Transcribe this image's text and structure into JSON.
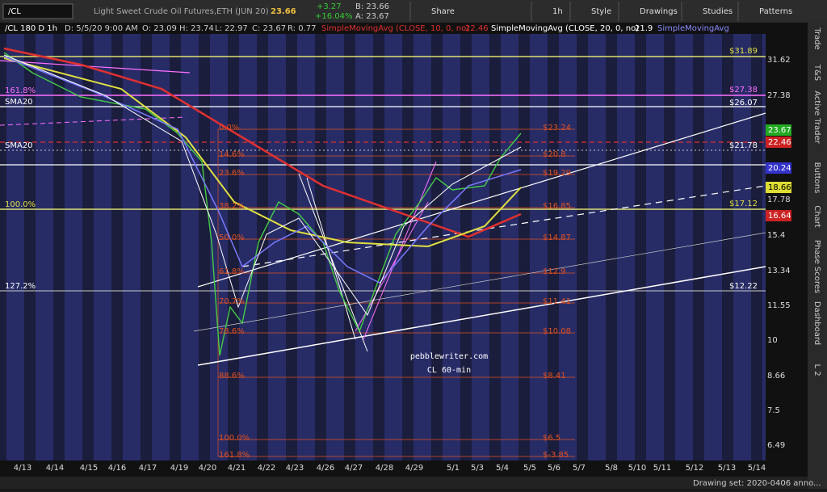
{
  "toolbar": {
    "symbol": "/CL",
    "description": "Light Sweet Crude Oil Futures,ETH (JUN 20)",
    "last": "23.66",
    "change": "+3.27",
    "change_pct": "+16.04%",
    "bid": "B: 23.66",
    "ask": "A: 23.67",
    "buttons": [
      "Share",
      "1h",
      "Style",
      "Drawings",
      "Studies",
      "Patterns"
    ]
  },
  "info_bar": {
    "symbol": "/CL 180 D 1h",
    "date": "D: 5/5/20 9:00 AM",
    "open": "O: 23.09",
    "high": "H: 23.74",
    "low": "L: 22.97",
    "close": "C: 23.67",
    "range": "R: 0.77",
    "study1": "SimpleMovingAvg (CLOSE, 10, 0, no)",
    "study1_value": "22.46",
    "study2": "SimpleMovingAvg (CLOSE, 20, 0, no)",
    "study2_value": "21.9",
    "study3": "SimpleMovingAvg"
  },
  "price_axis": [
    "31.62",
    "27.38",
    "17.78",
    "15.4",
    "13.34",
    "11.55",
    "10",
    "8.66",
    "7.5",
    "6.49"
  ],
  "price_badges": [
    "23.67",
    "22.46",
    "20.24",
    "18.66",
    "16.64"
  ],
  "dates": [
    "4/13",
    "4/14",
    "4/15",
    "4/16",
    "4/17",
    "4/19",
    "4/20",
    "4/21",
    "4/22",
    "4/23",
    "4/26",
    "4/27",
    "4/28",
    "4/29",
    "5/1",
    "5/3",
    "5/4",
    "5/5",
    "5/6",
    "5/7",
    "5/8",
    "5/10",
    "5/11",
    "5/12",
    "5/13",
    "5/14"
  ],
  "fib_levels": [
    {
      "pct": "0.0%",
      "price": "$23.24"
    },
    {
      "pct": "14.6%",
      "price": "$20.8"
    },
    {
      "pct": "23.6%",
      "price": "$19.29"
    },
    {
      "pct": "38.2%",
      "price": "$16.85"
    },
    {
      "pct": "50.0%",
      "price": "$14.87"
    },
    {
      "pct": "61.8%",
      "price": "$12.9"
    },
    {
      "pct": "70.7%",
      "price": "$11.41"
    },
    {
      "pct": "78.6%",
      "price": "$10.08"
    },
    {
      "pct": "88.6%",
      "price": "$8.41"
    },
    {
      "pct": "100.0%",
      "price": "$6.5"
    },
    {
      "pct": "161.8%",
      "price": "$-3.85"
    }
  ],
  "annotations": {
    "left": [
      "161.8%",
      "SMA20",
      "SMA20",
      "100.0%",
      "127.2%"
    ],
    "right": [
      "$31.89",
      "$27.38",
      "$26.07",
      "$21.78",
      "$17.12",
      "$12.22"
    ]
  },
  "watermark": {
    "site": "pebblewriter.com",
    "label": "CL 60-min"
  },
  "side_tabs": [
    "Trade",
    "T&S",
    "Active Trader",
    "Buttons",
    "Chart",
    "Phase Scores",
    "Dashboard",
    "L 2"
  ],
  "status": "Drawing set: 2020-0406 anno..."
}
